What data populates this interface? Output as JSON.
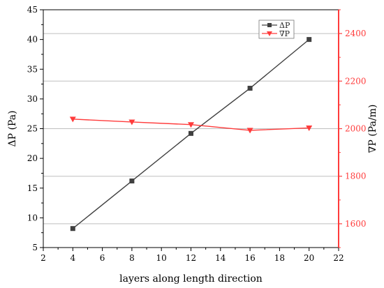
{
  "chart_data": {
    "type": "line",
    "title": "",
    "xlabel": "layers along length direction",
    "ylabel_left": "ΔP (Pa)",
    "ylabel_right": "∇P (Pa/m)",
    "x": [
      4,
      8,
      12,
      16,
      20
    ],
    "xlim": [
      2,
      22
    ],
    "x_ticks": [
      2,
      4,
      6,
      8,
      10,
      12,
      14,
      16,
      18,
      20,
      22
    ],
    "ylim_left": [
      5,
      45
    ],
    "y_ticks_left": [
      5,
      10,
      15,
      20,
      25,
      30,
      35,
      40,
      45
    ],
    "ylim_right": [
      1500,
      2500
    ],
    "y_ticks_right": [
      1600,
      1800,
      2000,
      2200,
      2400
    ],
    "grid": true,
    "legend_position": "top-right",
    "series": [
      {
        "name": "ΔP",
        "axis": "left",
        "marker": "square",
        "color": "#404040",
        "values": [
          8.2,
          16.2,
          24.2,
          31.8,
          40.0
        ]
      },
      {
        "name": "∇P",
        "axis": "right",
        "marker": "triangle-down",
        "color": "#ff3b3b",
        "values": [
          2040,
          2028,
          2017,
          1993,
          2003
        ]
      }
    ],
    "colors": {
      "left_axis": "#000000",
      "right_axis": "#ff3b3b",
      "grid": "#bfbfbf"
    }
  }
}
